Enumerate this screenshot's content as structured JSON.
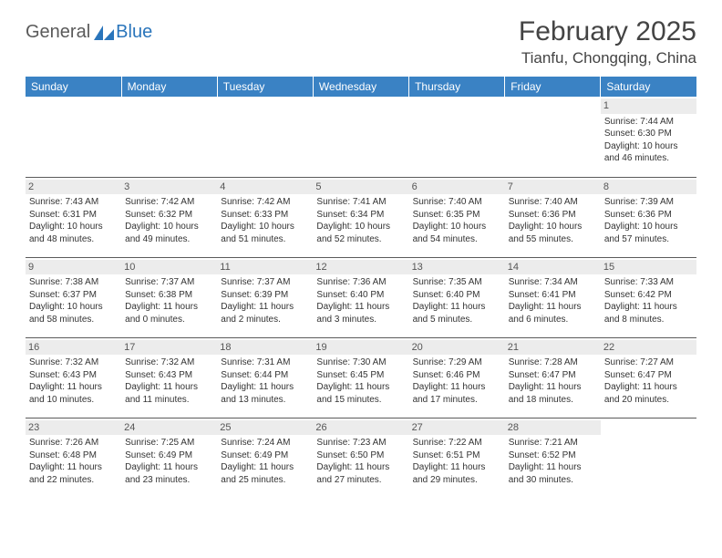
{
  "logo": {
    "part1": "General",
    "part2": "Blue"
  },
  "title": "February 2025",
  "location": "Tianfu, Chongqing, China",
  "header_color": "#3a82c4",
  "daynum_bg": "#ececec",
  "days_of_week": [
    "Sunday",
    "Monday",
    "Tuesday",
    "Wednesday",
    "Thursday",
    "Friday",
    "Saturday"
  ],
  "weeks": [
    [
      {
        "n": "",
        "sr": "",
        "ss": "",
        "dl": ""
      },
      {
        "n": "",
        "sr": "",
        "ss": "",
        "dl": ""
      },
      {
        "n": "",
        "sr": "",
        "ss": "",
        "dl": ""
      },
      {
        "n": "",
        "sr": "",
        "ss": "",
        "dl": ""
      },
      {
        "n": "",
        "sr": "",
        "ss": "",
        "dl": ""
      },
      {
        "n": "",
        "sr": "",
        "ss": "",
        "dl": ""
      },
      {
        "n": "1",
        "sr": "Sunrise: 7:44 AM",
        "ss": "Sunset: 6:30 PM",
        "dl": "Daylight: 10 hours and 46 minutes."
      }
    ],
    [
      {
        "n": "2",
        "sr": "Sunrise: 7:43 AM",
        "ss": "Sunset: 6:31 PM",
        "dl": "Daylight: 10 hours and 48 minutes."
      },
      {
        "n": "3",
        "sr": "Sunrise: 7:42 AM",
        "ss": "Sunset: 6:32 PM",
        "dl": "Daylight: 10 hours and 49 minutes."
      },
      {
        "n": "4",
        "sr": "Sunrise: 7:42 AM",
        "ss": "Sunset: 6:33 PM",
        "dl": "Daylight: 10 hours and 51 minutes."
      },
      {
        "n": "5",
        "sr": "Sunrise: 7:41 AM",
        "ss": "Sunset: 6:34 PM",
        "dl": "Daylight: 10 hours and 52 minutes."
      },
      {
        "n": "6",
        "sr": "Sunrise: 7:40 AM",
        "ss": "Sunset: 6:35 PM",
        "dl": "Daylight: 10 hours and 54 minutes."
      },
      {
        "n": "7",
        "sr": "Sunrise: 7:40 AM",
        "ss": "Sunset: 6:36 PM",
        "dl": "Daylight: 10 hours and 55 minutes."
      },
      {
        "n": "8",
        "sr": "Sunrise: 7:39 AM",
        "ss": "Sunset: 6:36 PM",
        "dl": "Daylight: 10 hours and 57 minutes."
      }
    ],
    [
      {
        "n": "9",
        "sr": "Sunrise: 7:38 AM",
        "ss": "Sunset: 6:37 PM",
        "dl": "Daylight: 10 hours and 58 minutes."
      },
      {
        "n": "10",
        "sr": "Sunrise: 7:37 AM",
        "ss": "Sunset: 6:38 PM",
        "dl": "Daylight: 11 hours and 0 minutes."
      },
      {
        "n": "11",
        "sr": "Sunrise: 7:37 AM",
        "ss": "Sunset: 6:39 PM",
        "dl": "Daylight: 11 hours and 2 minutes."
      },
      {
        "n": "12",
        "sr": "Sunrise: 7:36 AM",
        "ss": "Sunset: 6:40 PM",
        "dl": "Daylight: 11 hours and 3 minutes."
      },
      {
        "n": "13",
        "sr": "Sunrise: 7:35 AM",
        "ss": "Sunset: 6:40 PM",
        "dl": "Daylight: 11 hours and 5 minutes."
      },
      {
        "n": "14",
        "sr": "Sunrise: 7:34 AM",
        "ss": "Sunset: 6:41 PM",
        "dl": "Daylight: 11 hours and 6 minutes."
      },
      {
        "n": "15",
        "sr": "Sunrise: 7:33 AM",
        "ss": "Sunset: 6:42 PM",
        "dl": "Daylight: 11 hours and 8 minutes."
      }
    ],
    [
      {
        "n": "16",
        "sr": "Sunrise: 7:32 AM",
        "ss": "Sunset: 6:43 PM",
        "dl": "Daylight: 11 hours and 10 minutes."
      },
      {
        "n": "17",
        "sr": "Sunrise: 7:32 AM",
        "ss": "Sunset: 6:43 PM",
        "dl": "Daylight: 11 hours and 11 minutes."
      },
      {
        "n": "18",
        "sr": "Sunrise: 7:31 AM",
        "ss": "Sunset: 6:44 PM",
        "dl": "Daylight: 11 hours and 13 minutes."
      },
      {
        "n": "19",
        "sr": "Sunrise: 7:30 AM",
        "ss": "Sunset: 6:45 PM",
        "dl": "Daylight: 11 hours and 15 minutes."
      },
      {
        "n": "20",
        "sr": "Sunrise: 7:29 AM",
        "ss": "Sunset: 6:46 PM",
        "dl": "Daylight: 11 hours and 17 minutes."
      },
      {
        "n": "21",
        "sr": "Sunrise: 7:28 AM",
        "ss": "Sunset: 6:47 PM",
        "dl": "Daylight: 11 hours and 18 minutes."
      },
      {
        "n": "22",
        "sr": "Sunrise: 7:27 AM",
        "ss": "Sunset: 6:47 PM",
        "dl": "Daylight: 11 hours and 20 minutes."
      }
    ],
    [
      {
        "n": "23",
        "sr": "Sunrise: 7:26 AM",
        "ss": "Sunset: 6:48 PM",
        "dl": "Daylight: 11 hours and 22 minutes."
      },
      {
        "n": "24",
        "sr": "Sunrise: 7:25 AM",
        "ss": "Sunset: 6:49 PM",
        "dl": "Daylight: 11 hours and 23 minutes."
      },
      {
        "n": "25",
        "sr": "Sunrise: 7:24 AM",
        "ss": "Sunset: 6:49 PM",
        "dl": "Daylight: 11 hours and 25 minutes."
      },
      {
        "n": "26",
        "sr": "Sunrise: 7:23 AM",
        "ss": "Sunset: 6:50 PM",
        "dl": "Daylight: 11 hours and 27 minutes."
      },
      {
        "n": "27",
        "sr": "Sunrise: 7:22 AM",
        "ss": "Sunset: 6:51 PM",
        "dl": "Daylight: 11 hours and 29 minutes."
      },
      {
        "n": "28",
        "sr": "Sunrise: 7:21 AM",
        "ss": "Sunset: 6:52 PM",
        "dl": "Daylight: 11 hours and 30 minutes."
      },
      {
        "n": "",
        "sr": "",
        "ss": "",
        "dl": ""
      }
    ]
  ]
}
